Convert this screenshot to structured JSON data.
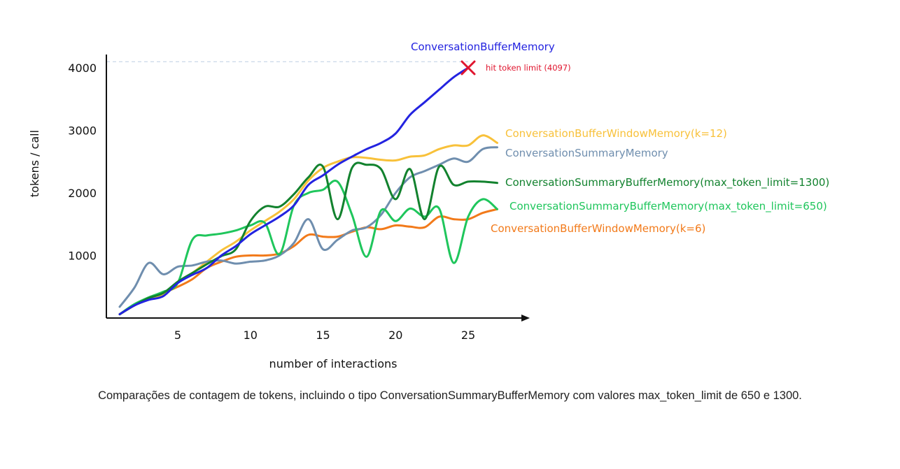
{
  "chart_data": {
    "type": "line",
    "xlabel": "number of interactions",
    "ylabel": "tokens / call",
    "x_ticks": [
      5,
      10,
      15,
      20,
      25
    ],
    "y_ticks": [
      1000,
      2000,
      3000,
      4000
    ],
    "xlim": [
      0,
      29
    ],
    "ylim": [
      0,
      4200
    ],
    "token_limit": {
      "value": 4097,
      "label": "hit token limit (4097)"
    },
    "series": [
      {
        "name": "ConversationBufferMemory",
        "color": "#2323e0",
        "x": [
          1,
          2,
          3,
          4,
          5,
          6,
          7,
          8,
          9,
          10,
          11,
          12,
          13,
          14,
          15,
          16,
          17,
          18,
          19,
          20,
          21,
          22,
          23,
          24,
          25
        ],
        "values": [
          60,
          200,
          290,
          350,
          560,
          690,
          800,
          1000,
          1150,
          1340,
          1480,
          1620,
          1800,
          2130,
          2280,
          2450,
          2580,
          2700,
          2800,
          2950,
          3250,
          3450,
          3650,
          3850,
          4000
        ]
      },
      {
        "name": "ConversationBufferWindowMemory(k=12)",
        "color": "#f8c13a",
        "x": [
          1,
          2,
          3,
          4,
          5,
          6,
          7,
          8,
          9,
          10,
          11,
          12,
          13,
          14,
          15,
          16,
          17,
          18,
          19,
          20,
          21,
          22,
          23,
          24,
          25,
          26,
          27
        ],
        "values": [
          60,
          200,
          300,
          380,
          580,
          720,
          900,
          1080,
          1220,
          1400,
          1550,
          1700,
          1900,
          2200,
          2400,
          2500,
          2570,
          2560,
          2530,
          2520,
          2580,
          2600,
          2700,
          2760,
          2760,
          2920,
          2800
        ]
      },
      {
        "name": "ConversationSummaryMemory",
        "color": "#6f8eae",
        "x": [
          1,
          2,
          3,
          4,
          5,
          6,
          7,
          8,
          9,
          10,
          11,
          12,
          13,
          14,
          15,
          16,
          17,
          18,
          19,
          20,
          21,
          22,
          23,
          24,
          25,
          26,
          27
        ],
        "values": [
          180,
          480,
          880,
          700,
          820,
          840,
          900,
          920,
          870,
          900,
          920,
          1000,
          1200,
          1580,
          1100,
          1250,
          1400,
          1450,
          1650,
          2000,
          2250,
          2350,
          2450,
          2550,
          2500,
          2700,
          2730
        ]
      },
      {
        "name": "ConversationSummaryBufferMemory(max_token_limit=1300)",
        "color": "#12822e",
        "x": [
          1,
          2,
          3,
          4,
          5,
          6,
          7,
          8,
          9,
          10,
          11,
          12,
          13,
          14,
          15,
          16,
          17,
          18,
          19,
          20,
          21,
          22,
          23,
          24,
          25,
          26,
          27
        ],
        "values": [
          60,
          200,
          320,
          400,
          580,
          720,
          860,
          990,
          1100,
          1550,
          1780,
          1780,
          1980,
          2250,
          2420,
          1580,
          2400,
          2450,
          2380,
          1900,
          2380,
          1580,
          2420,
          2130,
          2180,
          2180,
          2160
        ]
      },
      {
        "name": "ConversationSummaryBufferMemory(max_token_limit=650)",
        "color": "#1fc65c",
        "x": [
          1,
          2,
          3,
          4,
          5,
          6,
          7,
          8,
          9,
          10,
          11,
          12,
          13,
          14,
          15,
          16,
          17,
          18,
          19,
          20,
          21,
          22,
          23,
          24,
          25,
          26,
          27
        ],
        "values": [
          60,
          220,
          330,
          420,
          560,
          1250,
          1320,
          1350,
          1400,
          1480,
          1520,
          1020,
          1800,
          2000,
          2050,
          2180,
          1650,
          980,
          1720,
          1550,
          1750,
          1620,
          1750,
          880,
          1620,
          1900,
          1740
        ]
      },
      {
        "name": "ConversationBufferWindowMemory(k=6)",
        "color": "#f27a1a",
        "x": [
          1,
          2,
          3,
          4,
          5,
          6,
          7,
          8,
          9,
          10,
          11,
          12,
          13,
          14,
          15,
          16,
          17,
          18,
          19,
          20,
          21,
          22,
          23,
          24,
          25,
          26,
          27
        ],
        "values": [
          60,
          200,
          330,
          400,
          500,
          620,
          800,
          900,
          980,
          1000,
          1000,
          1030,
          1150,
          1330,
          1300,
          1300,
          1380,
          1450,
          1420,
          1480,
          1460,
          1450,
          1620,
          1580,
          1580,
          1680,
          1740
        ]
      }
    ]
  },
  "caption": "Comparações de contagem de tokens, incluindo o tipo ConversationSummaryBufferMemory com valores max_token_limit de 650 e 1300."
}
